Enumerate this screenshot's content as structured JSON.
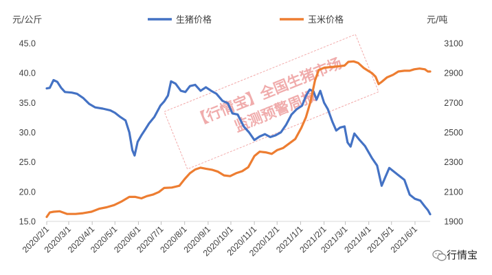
{
  "chart_data": {
    "type": "line",
    "y_left_label": "元/公斤",
    "y_right_label": "元/吨",
    "y_left_range": [
      15.0,
      45.0
    ],
    "y_right_range": [
      1900,
      3100
    ],
    "y_left_ticks": [
      "15.0",
      "20.0",
      "25.0",
      "30.0",
      "35.0",
      "40.0",
      "45.0"
    ],
    "y_right_ticks": [
      "1900",
      "2100",
      "2300",
      "2500",
      "2700",
      "2900",
      "3100"
    ],
    "x_ticks": [
      "2020/2/1",
      "2020/3/1",
      "2020/4/1",
      "2020/5/1",
      "2020/6/1",
      "2020/7/1",
      "2020/8/1",
      "2020/9/1",
      "2020/10/1",
      "2020/11/1",
      "2020/12/1",
      "2021/1/1",
      "2021/2/1",
      "2021/3/1",
      "2021/4/1",
      "2021/5/1",
      "2021/6/1"
    ],
    "legend_position": "top",
    "grid": false,
    "series": [
      {
        "name": "生猪价格",
        "axis": "left",
        "color": "#4472c4",
        "points": [
          [
            "2020-02-01",
            37.4
          ],
          [
            "2020-02-05",
            37.5
          ],
          [
            "2020-02-10",
            38.8
          ],
          [
            "2020-02-15",
            38.5
          ],
          [
            "2020-02-20",
            37.5
          ],
          [
            "2020-02-25",
            36.8
          ],
          [
            "2020-03-05",
            36.7
          ],
          [
            "2020-03-12",
            36.5
          ],
          [
            "2020-03-20",
            35.8
          ],
          [
            "2020-03-28",
            34.8
          ],
          [
            "2020-04-05",
            34.2
          ],
          [
            "2020-04-15",
            34.0
          ],
          [
            "2020-04-25",
            33.7
          ],
          [
            "2020-05-01",
            33.3
          ],
          [
            "2020-05-08",
            32.6
          ],
          [
            "2020-05-15",
            32.0
          ],
          [
            "2020-05-20",
            30.0
          ],
          [
            "2020-05-24",
            27.0
          ],
          [
            "2020-05-27",
            26.1
          ],
          [
            "2020-05-31",
            28.4
          ],
          [
            "2020-06-05",
            29.5
          ],
          [
            "2020-06-10",
            30.5
          ],
          [
            "2020-06-15",
            31.5
          ],
          [
            "2020-06-22",
            32.6
          ],
          [
            "2020-06-30",
            34.5
          ],
          [
            "2020-07-05",
            35.2
          ],
          [
            "2020-07-10",
            36.2
          ],
          [
            "2020-07-14",
            38.6
          ],
          [
            "2020-07-20",
            38.2
          ],
          [
            "2020-07-27",
            37.0
          ],
          [
            "2020-08-02",
            36.8
          ],
          [
            "2020-08-08",
            37.8
          ],
          [
            "2020-08-15",
            38.0
          ],
          [
            "2020-08-22",
            37.0
          ],
          [
            "2020-08-29",
            37.6
          ],
          [
            "2020-09-05",
            37.0
          ],
          [
            "2020-09-12",
            36.5
          ],
          [
            "2020-09-20",
            35.3
          ],
          [
            "2020-09-27",
            34.9
          ],
          [
            "2020-10-03",
            33.2
          ],
          [
            "2020-10-10",
            33.0
          ],
          [
            "2020-10-18",
            31.0
          ],
          [
            "2020-10-25",
            30.0
          ],
          [
            "2020-11-01",
            28.7
          ],
          [
            "2020-11-08",
            29.3
          ],
          [
            "2020-11-15",
            29.7
          ],
          [
            "2020-11-22",
            29.2
          ],
          [
            "2020-11-29",
            29.5
          ],
          [
            "2020-12-06",
            30.0
          ],
          [
            "2020-12-13",
            31.3
          ],
          [
            "2020-12-20",
            33.0
          ],
          [
            "2020-12-27",
            33.9
          ],
          [
            "2021-01-03",
            34.5
          ],
          [
            "2021-01-08",
            36.1
          ],
          [
            "2021-01-13",
            37.2
          ],
          [
            "2021-01-18",
            36.9
          ],
          [
            "2021-01-22",
            35.5
          ],
          [
            "2021-01-27",
            37.0
          ],
          [
            "2021-02-01",
            35.0
          ],
          [
            "2021-02-06",
            33.9
          ],
          [
            "2021-02-12",
            31.8
          ],
          [
            "2021-02-17",
            30.3
          ],
          [
            "2021-02-22",
            30.8
          ],
          [
            "2021-02-28",
            31.0
          ],
          [
            "2021-03-04",
            28.3
          ],
          [
            "2021-03-08",
            27.6
          ],
          [
            "2021-03-13",
            29.8
          ],
          [
            "2021-03-20",
            28.7
          ],
          [
            "2021-03-27",
            27.7
          ],
          [
            "2021-04-05",
            25.7
          ],
          [
            "2021-04-12",
            24.4
          ],
          [
            "2021-04-18",
            21.0
          ],
          [
            "2021-04-23",
            22.5
          ],
          [
            "2021-04-28",
            24.0
          ],
          [
            "2021-05-03",
            23.5
          ],
          [
            "2021-05-10",
            22.8
          ],
          [
            "2021-05-18",
            22.0
          ],
          [
            "2021-05-25",
            19.5
          ],
          [
            "2021-06-01",
            18.8
          ],
          [
            "2021-06-08",
            18.5
          ],
          [
            "2021-06-14",
            17.5
          ],
          [
            "2021-06-18",
            16.9
          ],
          [
            "2021-06-21",
            16.2
          ]
        ]
      },
      {
        "name": "玉米价格",
        "axis": "right",
        "color": "#ed7d31",
        "points": [
          [
            "2020-02-01",
            1930
          ],
          [
            "2020-02-05",
            1960
          ],
          [
            "2020-02-10",
            1965
          ],
          [
            "2020-02-18",
            1968
          ],
          [
            "2020-02-28",
            1950
          ],
          [
            "2020-03-10",
            1950
          ],
          [
            "2020-03-20",
            1955
          ],
          [
            "2020-03-31",
            1965
          ],
          [
            "2020-04-10",
            1985
          ],
          [
            "2020-04-20",
            1995
          ],
          [
            "2020-04-30",
            2010
          ],
          [
            "2020-05-10",
            2035
          ],
          [
            "2020-05-20",
            2065
          ],
          [
            "2020-05-28",
            2065
          ],
          [
            "2020-06-05",
            2055
          ],
          [
            "2020-06-12",
            2070
          ],
          [
            "2020-06-20",
            2080
          ],
          [
            "2020-06-28",
            2098
          ],
          [
            "2020-07-05",
            2125
          ],
          [
            "2020-07-15",
            2128
          ],
          [
            "2020-07-25",
            2140
          ],
          [
            "2020-08-01",
            2185
          ],
          [
            "2020-08-08",
            2225
          ],
          [
            "2020-08-15",
            2250
          ],
          [
            "2020-08-22",
            2262
          ],
          [
            "2020-08-29",
            2255
          ],
          [
            "2020-09-06",
            2248
          ],
          [
            "2020-09-14",
            2235
          ],
          [
            "2020-09-22",
            2210
          ],
          [
            "2020-09-30",
            2205
          ],
          [
            "2020-10-08",
            2225
          ],
          [
            "2020-10-16",
            2238
          ],
          [
            "2020-10-24",
            2265
          ],
          [
            "2020-11-01",
            2340
          ],
          [
            "2020-11-08",
            2370
          ],
          [
            "2020-11-16",
            2365
          ],
          [
            "2020-11-24",
            2355
          ],
          [
            "2020-12-01",
            2380
          ],
          [
            "2020-12-09",
            2395
          ],
          [
            "2020-12-17",
            2425
          ],
          [
            "2020-12-25",
            2455
          ],
          [
            "2021-01-02",
            2530
          ],
          [
            "2021-01-08",
            2600
          ],
          [
            "2021-01-14",
            2705
          ],
          [
            "2021-01-20",
            2850
          ],
          [
            "2021-01-25",
            2920
          ],
          [
            "2021-02-01",
            2935
          ],
          [
            "2021-02-10",
            2940
          ],
          [
            "2021-02-20",
            2945
          ],
          [
            "2021-02-28",
            2950
          ],
          [
            "2021-03-05",
            2975
          ],
          [
            "2021-03-12",
            2978
          ],
          [
            "2021-03-18",
            2968
          ],
          [
            "2021-03-25",
            2935
          ],
          [
            "2021-03-31",
            2915
          ],
          [
            "2021-04-05",
            2900
          ],
          [
            "2021-04-10",
            2875
          ],
          [
            "2021-04-14",
            2825
          ],
          [
            "2021-04-18",
            2840
          ],
          [
            "2021-04-25",
            2870
          ],
          [
            "2021-05-03",
            2888
          ],
          [
            "2021-05-10",
            2910
          ],
          [
            "2021-05-18",
            2915
          ],
          [
            "2021-05-25",
            2915
          ],
          [
            "2021-05-31",
            2925
          ],
          [
            "2021-06-07",
            2930
          ],
          [
            "2021-06-14",
            2925
          ],
          [
            "2021-06-18",
            2910
          ],
          [
            "2021-06-21",
            2910
          ]
        ]
      }
    ]
  },
  "watermark": {
    "line1": "【行情宝】全国生猪市场",
    "line2": "监测预警周报"
  },
  "brand": {
    "icon": "wechat-icon",
    "name": "行情宝"
  }
}
